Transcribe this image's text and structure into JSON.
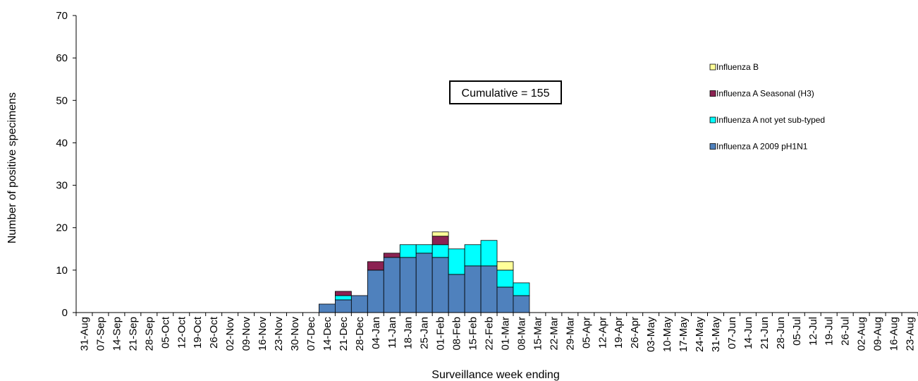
{
  "chart_data": {
    "type": "bar",
    "stacked": true,
    "xlabel": "Surveillance week ending",
    "ylabel": "Number of positive specimens",
    "ylim": [
      0,
      70
    ],
    "yticks": [
      0,
      10,
      20,
      30,
      40,
      50,
      60,
      70
    ],
    "grid": false,
    "legend_position": "right",
    "categories": [
      "31-Aug",
      "07-Sep",
      "14-Sep",
      "21-Sep",
      "28-Sep",
      "05-Oct",
      "12-Oct",
      "19-Oct",
      "26-Oct",
      "02-Nov",
      "09-Nov",
      "16-Nov",
      "23-Nov",
      "30-Nov",
      "07-Dec",
      "14-Dec",
      "21-Dec",
      "28-Dec",
      "04-Jan",
      "11-Jan",
      "18-Jan",
      "25-Jan",
      "01-Feb",
      "08-Feb",
      "15-Feb",
      "22-Feb",
      "01-Mar",
      "08-Mar",
      "15-Mar",
      "22-Mar",
      "29-Mar",
      "05-Apr",
      "12-Apr",
      "19-Apr",
      "26-Apr",
      "03-May",
      "10-May",
      "17-May",
      "24-May",
      "31-May",
      "07-Jun",
      "14-Jun",
      "21-Jun",
      "28-Jun",
      "05-Jul",
      "12-Jul",
      "19-Jul",
      "26-Jul",
      "02-Aug",
      "09-Aug",
      "16-Aug",
      "23-Aug"
    ],
    "series": [
      {
        "name": "Influenza A 2009 pH1N1",
        "color": "#4F81BD",
        "values": [
          0,
          0,
          0,
          0,
          0,
          0,
          0,
          0,
          0,
          0,
          0,
          0,
          0,
          0,
          0,
          2,
          3,
          4,
          10,
          13,
          13,
          14,
          13,
          9,
          11,
          11,
          6,
          4,
          0,
          0,
          0,
          0,
          0,
          0,
          0,
          0,
          0,
          0,
          0,
          0,
          0,
          0,
          0,
          0,
          0,
          0,
          0,
          0,
          0,
          0,
          0,
          0
        ]
      },
      {
        "name": "Influenza A not yet sub-typed",
        "color": "#00FFFF",
        "values": [
          0,
          0,
          0,
          0,
          0,
          0,
          0,
          0,
          0,
          0,
          0,
          0,
          0,
          0,
          0,
          0,
          1,
          0,
          0,
          0,
          3,
          2,
          3,
          6,
          5,
          6,
          4,
          3,
          0,
          0,
          0,
          0,
          0,
          0,
          0,
          0,
          0,
          0,
          0,
          0,
          0,
          0,
          0,
          0,
          0,
          0,
          0,
          0,
          0,
          0,
          0,
          0
        ]
      },
      {
        "name": "Influenza A Seasonal (H3)",
        "color": "#8B2252",
        "values": [
          0,
          0,
          0,
          0,
          0,
          0,
          0,
          0,
          0,
          0,
          0,
          0,
          0,
          0,
          0,
          0,
          1,
          0,
          2,
          1,
          0,
          0,
          2,
          0,
          0,
          0,
          0,
          0,
          0,
          0,
          0,
          0,
          0,
          0,
          0,
          0,
          0,
          0,
          0,
          0,
          0,
          0,
          0,
          0,
          0,
          0,
          0,
          0,
          0,
          0,
          0,
          0
        ]
      },
      {
        "name": "Influenza B",
        "color": "#FFFF99",
        "values": [
          0,
          0,
          0,
          0,
          0,
          0,
          0,
          0,
          0,
          0,
          0,
          0,
          0,
          0,
          0,
          0,
          0,
          0,
          0,
          0,
          0,
          0,
          1,
          0,
          0,
          0,
          2,
          0,
          0,
          0,
          0,
          0,
          0,
          0,
          0,
          0,
          0,
          0,
          0,
          0,
          0,
          0,
          0,
          0,
          0,
          0,
          0,
          0,
          0,
          0,
          0,
          0
        ]
      }
    ],
    "legend_order": [
      "Influenza B",
      "Influenza A Seasonal (H3)",
      "Influenza A not yet sub-typed",
      "Influenza A 2009 pH1N1"
    ],
    "annotation": "Cumulative = 155"
  }
}
